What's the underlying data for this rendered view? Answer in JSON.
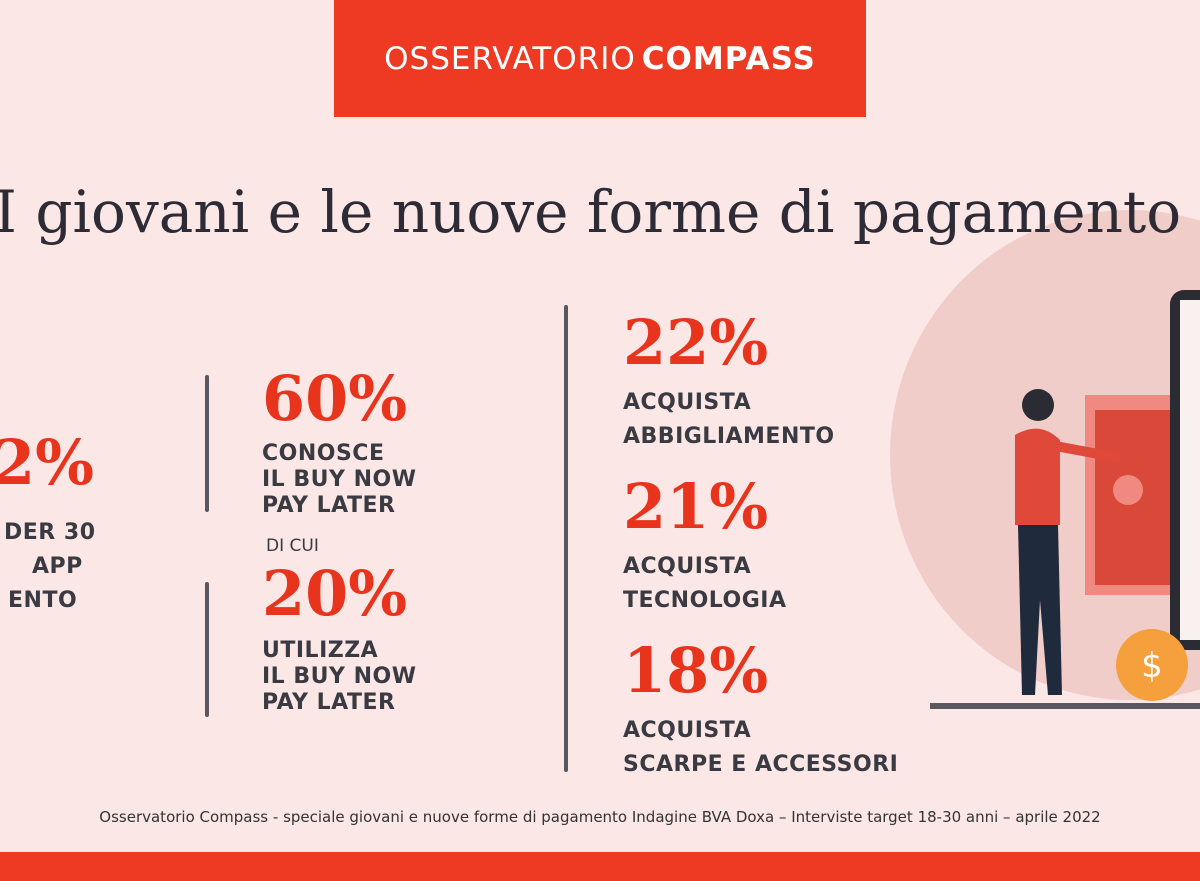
{
  "header": {
    "brand_light": "OSSERVATORIO",
    "brand_bold": "COMPASS"
  },
  "title": "I giovani e le nuove forme di pagamento",
  "left": {
    "percent": "2%",
    "lines": [
      "DER 30",
      "APP",
      "ENTO"
    ]
  },
  "middle": {
    "stat1": {
      "percent": "60%",
      "lines": [
        "CONOSCE",
        "IL BUY NOW",
        "PAY LATER"
      ]
    },
    "connector": "DI CUI",
    "stat2": {
      "percent": "20%",
      "lines": [
        "UTILIZZA",
        "IL BUY NOW",
        "PAY LATER"
      ]
    }
  },
  "right": [
    {
      "percent": "22%",
      "lines": [
        "ACQUISTA",
        "ABBIGLIAMENTO"
      ]
    },
    {
      "percent": "21%",
      "lines": [
        "ACQUISTA",
        "TECNOLOGIA"
      ]
    },
    {
      "percent": "18%",
      "lines": [
        "ACQUISTA",
        "SCARPE E ACCESSORI"
      ]
    }
  ],
  "footer": "Osservatorio Compass - speciale giovani e nuove forme di pagamento Indagine BVA Doxa – Interviste target 18-30 anni – aprile 2022"
}
